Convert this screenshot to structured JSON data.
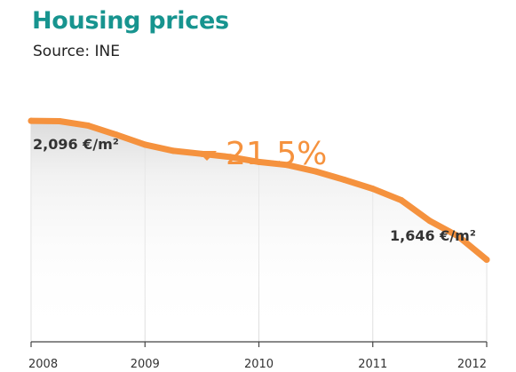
{
  "header": {
    "title": "Housing prices",
    "subtitle": "Source: INE"
  },
  "chart_data": {
    "type": "area",
    "title": "Housing prices",
    "subtitle": "Source: INE",
    "x": [
      "2008-01",
      "2008-04",
      "2008-07",
      "2008-10",
      "2009-01",
      "2009-04",
      "2009-07",
      "2009-10",
      "2010-01",
      "2010-04",
      "2010-07",
      "2010-10",
      "2011-01",
      "2011-04",
      "2011-07",
      "2011-10",
      "2012-01"
    ],
    "values": [
      2096,
      2095,
      2081,
      2051,
      2019,
      1999,
      1989,
      1979,
      1963,
      1953,
      1932,
      1905,
      1876,
      1839,
      1772,
      1722,
      1646
    ],
    "x_ticks": [
      "2008",
      "2009",
      "2010",
      "2011",
      "2012"
    ],
    "ylim": [
      1380,
      2200
    ],
    "grid": true,
    "colors": {
      "line": "#f5923e",
      "area_shadow": "#d9d9d9",
      "grid": "#dddddd",
      "title": "#17948f"
    },
    "annotations": {
      "start_label": "2,096 €/m²",
      "end_label": "1,646 €/m²",
      "change_label": "21.5%",
      "change_direction": "down"
    }
  }
}
